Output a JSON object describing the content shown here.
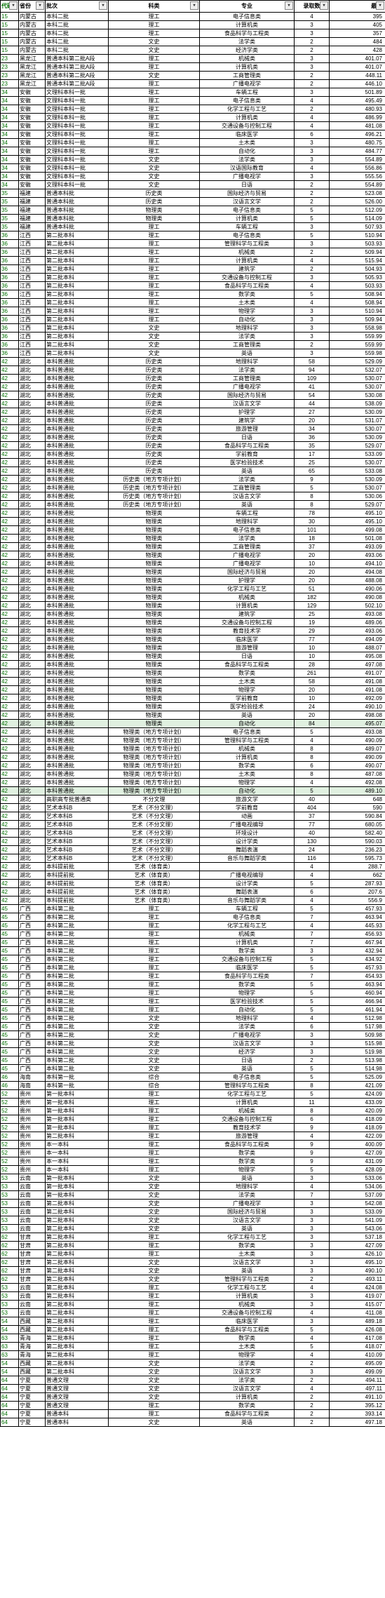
{
  "headers": {
    "code": "代码",
    "prov": "省份",
    "batch": "批次",
    "subj": "科类",
    "major": "专业",
    "cnt": "录取数",
    "min": "最低"
  },
  "highlight_batch": "本科普通批",
  "highlight_major": "自动化",
  "rows": [
    [
      "15",
      "内蒙古",
      "本科二批",
      "理工",
      "电子信息类",
      "4",
      "395"
    ],
    [
      "15",
      "内蒙古",
      "本科二批",
      "理工",
      "计算机类",
      "3",
      "405"
    ],
    [
      "15",
      "内蒙古",
      "本科二批",
      "理工",
      "食品科学与工程类",
      "3",
      "357"
    ],
    [
      "15",
      "内蒙古",
      "本科二批",
      "文史",
      "法学类",
      "2",
      "484"
    ],
    [
      "15",
      "内蒙古",
      "本科二批",
      "文史",
      "经济学类",
      "2",
      "428"
    ],
    [
      "23",
      "黑龙江",
      "普通本科第二批A段",
      "理工",
      "机械类",
      "3",
      "401.07"
    ],
    [
      "23",
      "黑龙江",
      "普通本科第二批A段",
      "理工",
      "计算机类",
      "3",
      "401.07"
    ],
    [
      "23",
      "黑龙江",
      "普通本科第二批A段",
      "文史",
      "工商管理类",
      "2",
      "448.11"
    ],
    [
      "23",
      "黑龙江",
      "普通本科第二批A段",
      "理工",
      "广播电视学",
      "2",
      "446.10"
    ],
    [
      "34",
      "安徽",
      "文理科本科一批",
      "理工",
      "车辆工程",
      "3",
      "501.89"
    ],
    [
      "34",
      "安徽",
      "文理科本科一批",
      "理工",
      "电子信息类",
      "4",
      "495.49"
    ],
    [
      "34",
      "安徽",
      "文理科本科一批",
      "理工",
      "化学工程与工艺",
      "2",
      "480.93"
    ],
    [
      "34",
      "安徽",
      "文理科本科一批",
      "理工",
      "计算机类",
      "4",
      "486.99"
    ],
    [
      "34",
      "安徽",
      "文理科本科一批",
      "理工",
      "交通设备与控制工程",
      "4",
      "481.08"
    ],
    [
      "34",
      "安徽",
      "文理科本科一批",
      "理工",
      "临床医学",
      "6",
      "496.21"
    ],
    [
      "34",
      "安徽",
      "文理科本科一批",
      "理工",
      "土木类",
      "3",
      "480.75"
    ],
    [
      "34",
      "安徽",
      "文理科本科一批",
      "理工",
      "自动化",
      "3",
      "484.77"
    ],
    [
      "34",
      "安徽",
      "文理科本科一批",
      "文史",
      "法学类",
      "3",
      "554.89"
    ],
    [
      "34",
      "安徽",
      "文理科本科一批",
      "文史",
      "汉语国际教育",
      "4",
      "556.86"
    ],
    [
      "34",
      "安徽",
      "文理科本科一批",
      "文史",
      "广播电视学",
      "3",
      "555.56"
    ],
    [
      "34",
      "安徽",
      "文理科本科一批",
      "文史",
      "日语",
      "2",
      "554.89"
    ],
    [
      "35",
      "福建",
      "普通本科批",
      "历史类",
      "国际经济与贸易",
      "2",
      "523.08"
    ],
    [
      "35",
      "福建",
      "普通本科批",
      "历史类",
      "汉语言文学",
      "2",
      "526.00"
    ],
    [
      "35",
      "福建",
      "普通本科批",
      "物理类",
      "电子信息类",
      "5",
      "512.09"
    ],
    [
      "35",
      "福建",
      "普通本科批",
      "物理类",
      "计算机类",
      "5",
      "514.09"
    ],
    [
      "35",
      "福建",
      "普通本科批",
      "理工",
      "车辆工程",
      "3",
      "507.93"
    ],
    [
      "36",
      "江西",
      "第二批本科",
      "理工",
      "电子信息类",
      "5",
      "510.94"
    ],
    [
      "36",
      "江西",
      "第二批本科",
      "理工",
      "管理科学与工程类",
      "3",
      "503.93"
    ],
    [
      "36",
      "江西",
      "第二批本科",
      "理工",
      "机械类",
      "2",
      "509.94"
    ],
    [
      "36",
      "江西",
      "第二批本科",
      "理工",
      "计算机类",
      "4",
      "515.94"
    ],
    [
      "36",
      "江西",
      "第二批本科",
      "理工",
      "建筑学",
      "2",
      "504.93"
    ],
    [
      "36",
      "江西",
      "第二批本科",
      "理工",
      "交通设备与控制工程",
      "3",
      "505.93"
    ],
    [
      "36",
      "江西",
      "第二批本科",
      "理工",
      "食品科学与工程类",
      "4",
      "503.93"
    ],
    [
      "36",
      "江西",
      "第二批本科",
      "理工",
      "数学类",
      "5",
      "508.94"
    ],
    [
      "36",
      "江西",
      "第二批本科",
      "理工",
      "土木类",
      "4",
      "508.94"
    ],
    [
      "36",
      "江西",
      "第二批本科",
      "理工",
      "物理学",
      "3",
      "510.94"
    ],
    [
      "36",
      "江西",
      "第二批本科",
      "理工",
      "自动化",
      "3",
      "509.94"
    ],
    [
      "36",
      "江西",
      "第二批本科",
      "文史",
      "地理科学",
      "3",
      "558.98"
    ],
    [
      "36",
      "江西",
      "第二批本科",
      "文史",
      "法学类",
      "3",
      "559.99"
    ],
    [
      "36",
      "江西",
      "第二批本科",
      "文史",
      "工商管理类",
      "2",
      "559.99"
    ],
    [
      "36",
      "江西",
      "第二批本科",
      "文史",
      "英语",
      "3",
      "559.98"
    ],
    [
      "42",
      "湖北",
      "本科普通批",
      "历史类",
      "地理科学",
      "58",
      "529.09"
    ],
    [
      "42",
      "湖北",
      "本科普通批",
      "历史类",
      "法学类",
      "94",
      "532.07"
    ],
    [
      "42",
      "湖北",
      "本科普通批",
      "历史类",
      "工商管理类",
      "109",
      "530.07"
    ],
    [
      "42",
      "湖北",
      "本科普通批",
      "历史类",
      "广播电视学",
      "41",
      "530.07"
    ],
    [
      "42",
      "湖北",
      "本科普通批",
      "历史类",
      "国际经济与贸易",
      "54",
      "530.08"
    ],
    [
      "42",
      "湖北",
      "本科普通批",
      "历史类",
      "汉语言文学",
      "44",
      "538.09"
    ],
    [
      "42",
      "湖北",
      "本科普通批",
      "历史类",
      "护理学",
      "27",
      "530.09"
    ],
    [
      "42",
      "湖北",
      "本科普通批",
      "历史类",
      "建筑学",
      "20",
      "531.07"
    ],
    [
      "42",
      "湖北",
      "本科普通批",
      "历史类",
      "旅游管理",
      "34",
      "530.07"
    ],
    [
      "42",
      "湖北",
      "本科普通批",
      "历史类",
      "日语",
      "36",
      "530.09"
    ],
    [
      "42",
      "湖北",
      "本科普通批",
      "历史类",
      "食品科学与工程类",
      "35",
      "529.07"
    ],
    [
      "42",
      "湖北",
      "本科普通批",
      "历史类",
      "学前教育",
      "17",
      "533.09"
    ],
    [
      "42",
      "湖北",
      "本科普通批",
      "历史类",
      "医学检验技术",
      "25",
      "530.07"
    ],
    [
      "42",
      "湖北",
      "本科普通批",
      "历史类",
      "英语",
      "65",
      "533.08"
    ],
    [
      "42",
      "湖北",
      "本科普通批",
      "历史类（地方专项计划）",
      "法学类",
      "9",
      "530.09"
    ],
    [
      "42",
      "湖北",
      "本科普通批",
      "历史类（地方专项计划）",
      "工商管理类",
      "5",
      "530.07"
    ],
    [
      "42",
      "湖北",
      "本科普通批",
      "历史类（地方专项计划）",
      "汉语言文学",
      "8",
      "530.06"
    ],
    [
      "42",
      "湖北",
      "本科普通批",
      "历史类（地方专项计划）",
      "英语",
      "8",
      "529.07"
    ],
    [
      "42",
      "湖北",
      "本科普通批",
      "物理类",
      "车辆工程",
      "78",
      "495.10"
    ],
    [
      "42",
      "湖北",
      "本科普通批",
      "物理类",
      "地理科学",
      "30",
      "495.10"
    ],
    [
      "42",
      "湖北",
      "本科普通批",
      "物理类",
      "电子信息类",
      "101",
      "499.08"
    ],
    [
      "42",
      "湖北",
      "本科普通批",
      "物理类",
      "法学类",
      "18",
      "501.08"
    ],
    [
      "42",
      "湖北",
      "本科普通批",
      "物理类",
      "工商管理类",
      "37",
      "493.09"
    ],
    [
      "42",
      "湖北",
      "本科普通批",
      "物理类",
      "广播电视学",
      "20",
      "493.06"
    ],
    [
      "42",
      "湖北",
      "本科普通批",
      "物理类",
      "广播电视学",
      "10",
      "494.10"
    ],
    [
      "42",
      "湖北",
      "本科普通批",
      "物理类",
      "国际经济与贸易",
      "20",
      "494.08"
    ],
    [
      "42",
      "湖北",
      "本科普通批",
      "物理类",
      "护理学",
      "20",
      "488.08"
    ],
    [
      "42",
      "湖北",
      "本科普通批",
      "物理类",
      "化学工程与工艺",
      "51",
      "490.06"
    ],
    [
      "42",
      "湖北",
      "本科普通批",
      "物理类",
      "机械类",
      "182",
      "490.08"
    ],
    [
      "42",
      "湖北",
      "本科普通批",
      "物理类",
      "计算机类",
      "129",
      "502.10"
    ],
    [
      "42",
      "湖北",
      "本科普通批",
      "物理类",
      "建筑学",
      "25",
      "493.08"
    ],
    [
      "42",
      "湖北",
      "本科普通批",
      "物理类",
      "交通设备与控制工程",
      "19",
      "489.06"
    ],
    [
      "42",
      "湖北",
      "本科普通批",
      "物理类",
      "教育技术学",
      "29",
      "493.06"
    ],
    [
      "42",
      "湖北",
      "本科普通批",
      "物理类",
      "临床医学",
      "77",
      "494.09"
    ],
    [
      "42",
      "湖北",
      "本科普通批",
      "物理类",
      "旅游管理",
      "10",
      "488.07"
    ],
    [
      "42",
      "湖北",
      "本科普通批",
      "物理类",
      "日语",
      "10",
      "495.08"
    ],
    [
      "42",
      "湖北",
      "本科普通批",
      "物理类",
      "食品科学与工程类",
      "28",
      "497.08"
    ],
    [
      "42",
      "湖北",
      "本科普通批",
      "物理类",
      "数学类",
      "261",
      "491.07"
    ],
    [
      "42",
      "湖北",
      "本科普通批",
      "物理类",
      "土木类",
      "58",
      "491.08"
    ],
    [
      "42",
      "湖北",
      "本科普通批",
      "物理类",
      "物理学",
      "20",
      "491.08"
    ],
    [
      "42",
      "湖北",
      "本科普通批",
      "物理类",
      "学前教育",
      "10",
      "492.09"
    ],
    [
      "42",
      "湖北",
      "本科普通批",
      "物理类",
      "医学检验技术",
      "24",
      "490.10"
    ],
    [
      "42",
      "湖北",
      "本科普通批",
      "物理类",
      "英语",
      "20",
      "498.08"
    ],
    [
      "42",
      "湖北",
      "本科普通批",
      "物理类",
      "自动化",
      "84",
      "495.07"
    ],
    [
      "42",
      "湖北",
      "本科普通批",
      "物理类（地方专项计划）",
      "电子信息类",
      "5",
      "493.08"
    ],
    [
      "42",
      "湖北",
      "本科普通批",
      "物理类（地方专项计划）",
      "管理科学与工程类",
      "4",
      "490.09"
    ],
    [
      "42",
      "湖北",
      "本科普通批",
      "物理类（地方专项计划）",
      "机械类",
      "8",
      "489.07"
    ],
    [
      "42",
      "湖北",
      "本科普通批",
      "物理类（地方专项计划）",
      "计算机类",
      "8",
      "490.09"
    ],
    [
      "42",
      "湖北",
      "本科普通批",
      "物理类（地方专项计划）",
      "数学类",
      "6",
      "490.07"
    ],
    [
      "42",
      "湖北",
      "本科普通批",
      "物理类（地方专项计划）",
      "土木类",
      "8",
      "487.08"
    ],
    [
      "42",
      "湖北",
      "本科普通批",
      "物理类（地方专项计划）",
      "物理学",
      "4",
      "492.08"
    ],
    [
      "42",
      "湖北",
      "本科普通批",
      "物理类（地方专项计划）",
      "自动化",
      "5",
      "489.10"
    ],
    [
      "42",
      "湖北",
      "高职高专批普通类",
      "不分文理",
      "旅游文学",
      "40",
      "648"
    ],
    [
      "42",
      "湖北",
      "艺术本科B",
      "艺术（不分文理）",
      "学前教育",
      "404",
      "590"
    ],
    [
      "42",
      "湖北",
      "艺术本科B",
      "艺术（不分文理）",
      "动画",
      "37",
      "590.84"
    ],
    [
      "42",
      "湖北",
      "艺术本科B",
      "艺术（不分文理）",
      "广播电视编导",
      "77",
      "680.05"
    ],
    [
      "42",
      "湖北",
      "艺术本科B",
      "艺术（不分文理）",
      "环境设计",
      "40",
      "582.40"
    ],
    [
      "42",
      "湖北",
      "艺术本科B",
      "艺术（不分文理）",
      "设计学类",
      "130",
      "590.03"
    ],
    [
      "42",
      "湖北",
      "艺术本科B",
      "艺术（不分文理）",
      "舞蹈表演",
      "24",
      "236.23"
    ],
    [
      "42",
      "湖北",
      "艺术本科B",
      "艺术（不分文理）",
      "音乐与舞蹈学类",
      "116",
      "595.73"
    ],
    [
      "42",
      "湖北",
      "本科提前批",
      "艺术（体育类）",
      "",
      "4",
      "288.7"
    ],
    [
      "42",
      "湖北",
      "本科提前批",
      "艺术（体育类）",
      "广播电视编导",
      "4",
      "662"
    ],
    [
      "42",
      "湖北",
      "本科提前批",
      "艺术（体育类）",
      "设计学类",
      "5",
      "287.93"
    ],
    [
      "42",
      "湖北",
      "本科提前批",
      "艺术（体育类）",
      "舞蹈表演",
      "6",
      "207.6"
    ],
    [
      "42",
      "湖北",
      "本科提前批",
      "艺术（体育类）",
      "音乐与舞蹈学类",
      "4",
      "556.9"
    ],
    [
      "45",
      "广西",
      "本科第二批",
      "理工",
      "车辆工程",
      "5",
      "457.93"
    ],
    [
      "45",
      "广西",
      "本科第二批",
      "理工",
      "电子信息类",
      "7",
      "463.94"
    ],
    [
      "45",
      "广西",
      "本科第二批",
      "理工",
      "化学工程与工艺",
      "4",
      "445.93"
    ],
    [
      "45",
      "广西",
      "本科第二批",
      "理工",
      "机械类",
      "7",
      "456.93"
    ],
    [
      "45",
      "广西",
      "本科第二批",
      "理工",
      "计算机类",
      "7",
      "467.94"
    ],
    [
      "45",
      "广西",
      "本科第二批",
      "理工",
      "数学类",
      "3",
      "432.94"
    ],
    [
      "45",
      "广西",
      "本科第二批",
      "理工",
      "交通设备与控制工程",
      "5",
      "434.92"
    ],
    [
      "45",
      "广西",
      "本科第二批",
      "理工",
      "临床医学",
      "5",
      "457.93"
    ],
    [
      "45",
      "广西",
      "本科第二批",
      "理工",
      "食品科学与工程类",
      "7",
      "454.93"
    ],
    [
      "45",
      "广西",
      "本科第二批",
      "理工",
      "数学类",
      "5",
      "463.94"
    ],
    [
      "45",
      "广西",
      "本科第二批",
      "理工",
      "物理学",
      "5",
      "460.94"
    ],
    [
      "45",
      "广西",
      "本科第二批",
      "理工",
      "医学检验技术",
      "5",
      "466.94"
    ],
    [
      "45",
      "广西",
      "本科第二批",
      "理工",
      "自动化",
      "5",
      "461.94"
    ],
    [
      "45",
      "广西",
      "本科第二批",
      "文史",
      "地理科学",
      "4",
      "512.98"
    ],
    [
      "45",
      "广西",
      "本科第二批",
      "文史",
      "法学类",
      "6",
      "517.98"
    ],
    [
      "45",
      "广西",
      "本科第二批",
      "文史",
      "广播电视学",
      "3",
      "509.98"
    ],
    [
      "45",
      "广西",
      "本科第二批",
      "文史",
      "汉语言文学",
      "3",
      "515.98"
    ],
    [
      "45",
      "广西",
      "本科第二批",
      "文史",
      "经济学",
      "3",
      "519.98"
    ],
    [
      "45",
      "广西",
      "本科第二批",
      "文史",
      "日语",
      "2",
      "513.98"
    ],
    [
      "45",
      "广西",
      "本科第二批",
      "文史",
      "英语",
      "5",
      "514.98"
    ],
    [
      "46",
      "海南",
      "本科第一批",
      "综合",
      "电子信息类",
      "5",
      "525.09"
    ],
    [
      "46",
      "海南",
      "本科第一批",
      "综合",
      "管理科学与工程类",
      "8",
      "421.09"
    ],
    [
      "52",
      "贵州",
      "第一批本科",
      "理工",
      "化学工程与工艺",
      "5",
      "424.09"
    ],
    [
      "52",
      "贵州",
      "第一批本科",
      "理工",
      "计算机类",
      "11",
      "433.09"
    ],
    [
      "52",
      "贵州",
      "第一批本科",
      "理工",
      "机械类",
      "8",
      "420.09"
    ],
    [
      "52",
      "贵州",
      "第一批本科",
      "理工",
      "交通设备与控制工程",
      "6",
      "418.09"
    ],
    [
      "52",
      "贵州",
      "第一批本科",
      "理工",
      "教育技术学",
      "9",
      "418.09"
    ],
    [
      "52",
      "贵州",
      "第二批本科",
      "理工",
      "旅游管理",
      "4",
      "422.09"
    ],
    [
      "52",
      "贵州",
      "本一本科",
      "理工",
      "食品科学与工程类",
      "9",
      "400.09"
    ],
    [
      "52",
      "贵州",
      "本一本科",
      "理工",
      "数学类",
      "9",
      "427.09"
    ],
    [
      "52",
      "贵州",
      "本一本科",
      "理工",
      "数学类",
      "9",
      "431.09"
    ],
    [
      "52",
      "贵州",
      "本一本科",
      "理工",
      "物理学",
      "5",
      "428.09"
    ],
    [
      "53",
      "云南",
      "第一批本科",
      "文史",
      "英语",
      "3",
      "533.06"
    ],
    [
      "53",
      "云南",
      "第一批本科",
      "文史",
      "地理科学",
      "4",
      "534.06"
    ],
    [
      "53",
      "云南",
      "第一批本科",
      "文史",
      "法学类",
      "7",
      "537.09"
    ],
    [
      "53",
      "云南",
      "第二批本科",
      "文史",
      "广播电视学",
      "3",
      "542.08"
    ],
    [
      "53",
      "云南",
      "第二批本科",
      "文史",
      "国际经济与贸易",
      "3",
      "533.09"
    ],
    [
      "53",
      "云南",
      "第二批本科",
      "文史",
      "汉语言文学",
      "3",
      "541.09"
    ],
    [
      "53",
      "云南",
      "第二批本科",
      "文史",
      "英语",
      "3",
      "543.06"
    ],
    [
      "62",
      "甘肃",
      "第二批本科",
      "理工",
      "化学工程与工艺",
      "3",
      "537.18"
    ],
    [
      "62",
      "甘肃",
      "第二批本科",
      "理工",
      "数学类",
      "3",
      "427.09"
    ],
    [
      "62",
      "甘肃",
      "第二批本科",
      "理工",
      "土木类",
      "3",
      "426.10"
    ],
    [
      "62",
      "甘肃",
      "第二批本科",
      "文史",
      "汉语言文学",
      "3",
      "495.10"
    ],
    [
      "62",
      "甘肃",
      "第二批本科",
      "文史",
      "英语",
      "3",
      "490.10"
    ],
    [
      "62",
      "甘肃",
      "第二批本科",
      "文史",
      "管理科学与工程类",
      "2",
      "493.11"
    ],
    [
      "53",
      "云南",
      "第二批本科",
      "理工",
      "化学工程与工艺",
      "4",
      "424.08"
    ],
    [
      "53",
      "云南",
      "第二批本科",
      "理工",
      "计算机类",
      "3",
      "419.07"
    ],
    [
      "53",
      "云南",
      "第二批本科",
      "理工",
      "机械类",
      "3",
      "415.07"
    ],
    [
      "53",
      "云南",
      "第二批本科",
      "理工",
      "交通设备与控制工程",
      "4",
      "411.08"
    ],
    [
      "54",
      "西藏",
      "第二批本科",
      "理工",
      "临床医学",
      "3",
      "489.18"
    ],
    [
      "54",
      "西藏",
      "第二批本科",
      "理工",
      "食品科学与工程类",
      "5",
      "426.08"
    ],
    [
      "63",
      "青海",
      "第二批本科",
      "理工",
      "数学类",
      "4",
      "417.08"
    ],
    [
      "63",
      "青海",
      "第二批本科",
      "理工",
      "土木类",
      "5",
      "418.07"
    ],
    [
      "63",
      "青海",
      "第二批本科",
      "理工",
      "物理学",
      "4",
      "410.09"
    ],
    [
      "54",
      "西藏",
      "第二批本科",
      "文史",
      "法学类",
      "2",
      "495.09"
    ],
    [
      "54",
      "西藏",
      "第二批本科",
      "文史",
      "汉语言文学",
      "3",
      "499.09"
    ],
    [
      "64",
      "宁夏",
      "普通文理",
      "文史",
      "法学类",
      "2",
      "494.11"
    ],
    [
      "64",
      "宁夏",
      "普通文理",
      "文史",
      "汉语言文学",
      "4",
      "497.11"
    ],
    [
      "64",
      "宁夏",
      "普通文理",
      "文史",
      "计算机类",
      "2",
      "491.10"
    ],
    [
      "64",
      "宁夏",
      "普通文理",
      "理工",
      "数学类",
      "2",
      "395.12"
    ],
    [
      "64",
      "宁夏",
      "普通本科",
      "理工",
      "食品科学与工程类",
      "2",
      "393.14"
    ],
    [
      "64",
      "宁夏",
      "普通本科",
      "文史",
      "英语",
      "2",
      "497.18"
    ]
  ]
}
